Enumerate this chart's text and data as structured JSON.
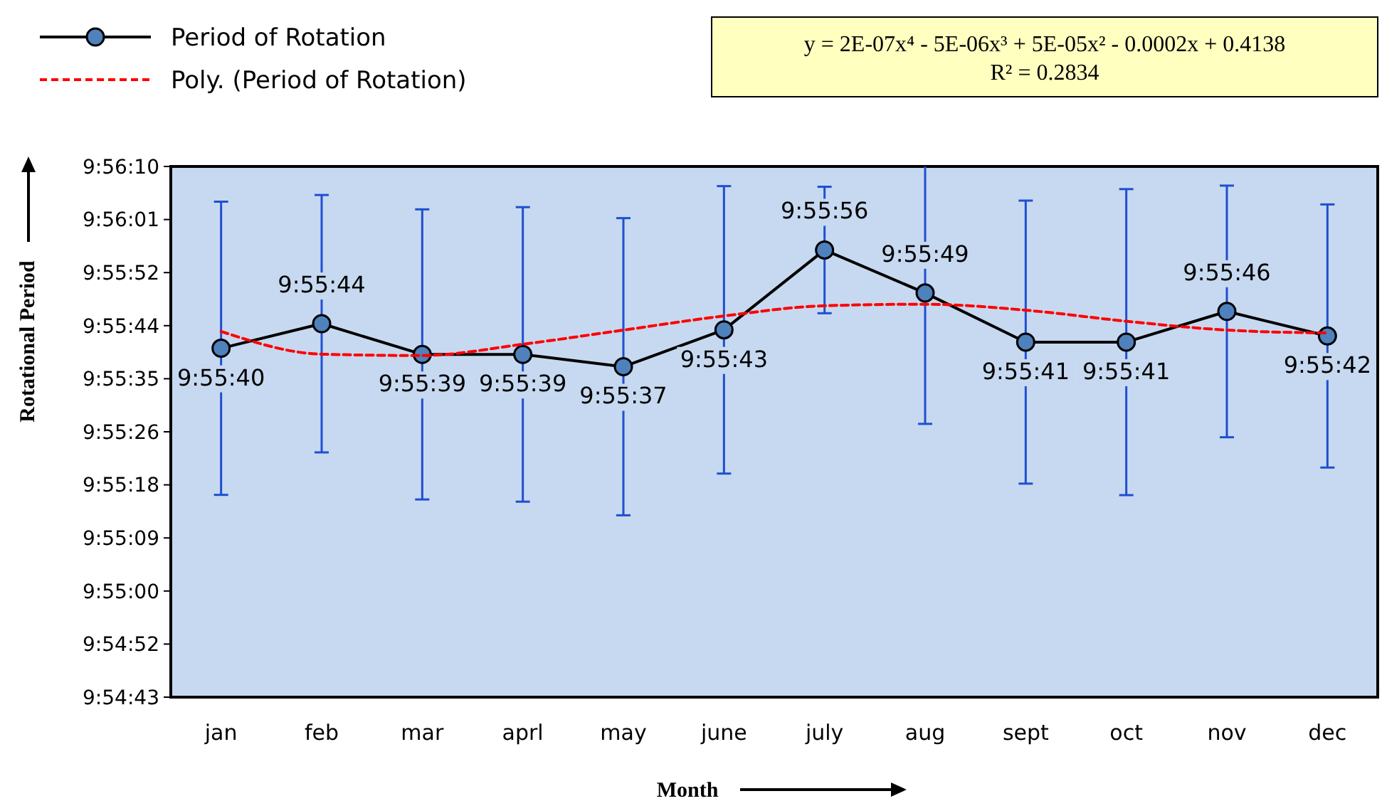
{
  "chart_data": {
    "type": "line",
    "xlabel": "Month",
    "ylabel": "Rotational Period",
    "categories": [
      "jan",
      "feb",
      "mar",
      "aprl",
      "may",
      "june",
      "july",
      "aug",
      "sept",
      "oct",
      "nov",
      "dec"
    ],
    "series": [
      {
        "name": "Period of Rotation",
        "type": "line",
        "color": "#000000",
        "colors": [
          "#4f81bd",
          "#4f81bd",
          "#4f81bd",
          "#4f81bd",
          "#4f81bd",
          "#4f81bd",
          "#4f81bd",
          "#4f81bd",
          "#4f81bd",
          "#4f81bd",
          "#4f81bd",
          "#4f81bd"
        ],
        "marker": "circle",
        "line_style": "solid",
        "values": [
          9.927778,
          9.928889,
          9.9275,
          9.9275,
          9.926944,
          9.928611,
          9.932222,
          9.930278,
          9.928056,
          9.928056,
          9.929444,
          9.928333
        ],
        "value_labels": [
          "9:55:40",
          "9:55:44",
          "9:55:39",
          "9:55:39",
          "9:55:37",
          "9:55:43",
          "9:55:56",
          "9:55:49",
          "9:55:41",
          "9:55:41",
          "9:55:46",
          "9:55:42"
        ],
        "errors": [
          0.00663,
          0.00582,
          0.00656,
          0.00666,
          0.00672,
          0.0065,
          0.00286,
          [
            9.924358,
            9.936
          ],
          0.0064,
          0.00692,
          0.00569,
          0.00595
        ]
      },
      {
        "name": "Poly. (Period of Rotation)",
        "type": "line",
        "color": "#ff0000",
        "marker": "none",
        "line_style": "dashed",
        "values": [
          9.92854,
          9.92751,
          9.92745,
          9.92796,
          9.9286,
          9.92924,
          9.9297,
          9.92977,
          9.9295,
          9.929,
          9.9286,
          9.92847
        ]
      }
    ],
    "ylim": [
      9.912,
      9.936
    ],
    "yticks": [
      {
        "value": 9.912,
        "label": "9:54:43"
      },
      {
        "value": 9.9144,
        "label": "9:54:52"
      },
      {
        "value": 9.9168,
        "label": "9:55:00"
      },
      {
        "value": 9.9192,
        "label": "9:55:09"
      },
      {
        "value": 9.9216,
        "label": "9:55:18"
      },
      {
        "value": 9.924,
        "label": "9:55:26"
      },
      {
        "value": 9.9264,
        "label": "9:55:35"
      },
      {
        "value": 9.9288,
        "label": "9:55:44"
      },
      {
        "value": 9.9312,
        "label": "9:55:52"
      },
      {
        "value": 9.9336,
        "label": "9:56:01"
      },
      {
        "value": 9.936,
        "label": "9:56:10"
      }
    ],
    "annotations": [
      "y = 2E-07x⁴ - 5E-06x³ + 5E-05x² - 0.0002x + 0.4138",
      "R² = 0.2834"
    ],
    "legend": "top left",
    "grid": false
  }
}
